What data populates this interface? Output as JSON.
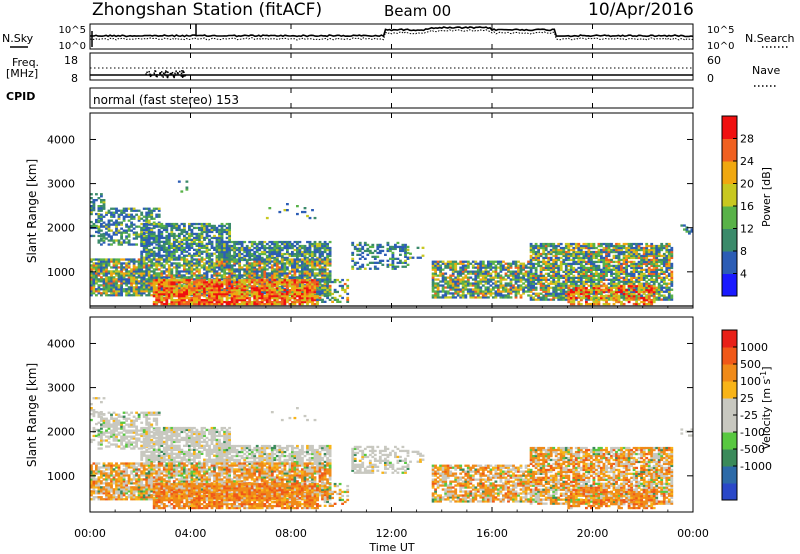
{
  "header": {
    "station": "Zhongshan Station (fitACF)",
    "beam": "Beam 00",
    "date": "10/Apr/2016"
  },
  "top_panels": {
    "nsky_label": "N.Sky",
    "nsearch_label": "N.Search",
    "freq_label": "Freq.",
    "freq_unit": "[MHz]",
    "nave_label": "Nave",
    "cpid_label": "CPID",
    "cpid_value": "normal (fast stereo) 153",
    "noise_ticks_left": [
      "10^5",
      "10^0"
    ],
    "noise_ticks_right": [
      "10^5",
      "10^0"
    ],
    "freq_ticks": [
      "18",
      "8"
    ],
    "nave_ticks": [
      "60",
      "0"
    ]
  },
  "x_axis": {
    "label": "Time UT",
    "ticks": [
      "00:00",
      "04:00",
      "08:00",
      "12:00",
      "16:00",
      "20:00",
      "00:00"
    ]
  },
  "colors": {
    "power": [
      "#1a1aff",
      "#2c5db5",
      "#3a8a6a",
      "#58b248",
      "#c8c820",
      "#f0a810",
      "#f06020",
      "#f01010"
    ],
    "velocity": [
      "#e82018",
      "#f05818",
      "#f08a18",
      "#f8b418",
      "#c8c8c0",
      "#c8c8c0",
      "#58c840",
      "#3a8a5a",
      "#2c6aa8",
      "#2a48c8"
    ]
  },
  "chart_data": [
    {
      "type": "heatmap",
      "ylabel": "Slant Range [km]",
      "ylim": [
        180,
        4600
      ],
      "y_ticks": [
        "1000",
        "2000",
        "3000",
        "4000"
      ],
      "xlim_hours": [
        0,
        24
      ],
      "colorbar_label": "Power [dB]",
      "colorbar_ticks": [
        "4",
        "8",
        "12",
        "16",
        "20",
        "24",
        "28"
      ],
      "colorbar_range": [
        0,
        32
      ]
    },
    {
      "type": "heatmap",
      "ylabel": "Slant Range [km]",
      "ylim": [
        180,
        4600
      ],
      "y_ticks": [
        "1000",
        "2000",
        "3000",
        "4000"
      ],
      "xlim_hours": [
        0,
        24
      ],
      "colorbar_label": "Velocity [m s",
      "colorbar_unit_sup": "-1",
      "colorbar_unit_end": "]",
      "colorbar_ticks": [
        "1000",
        "500",
        "100",
        "25",
        "-25",
        "-100",
        "-500",
        "-1000"
      ]
    }
  ]
}
